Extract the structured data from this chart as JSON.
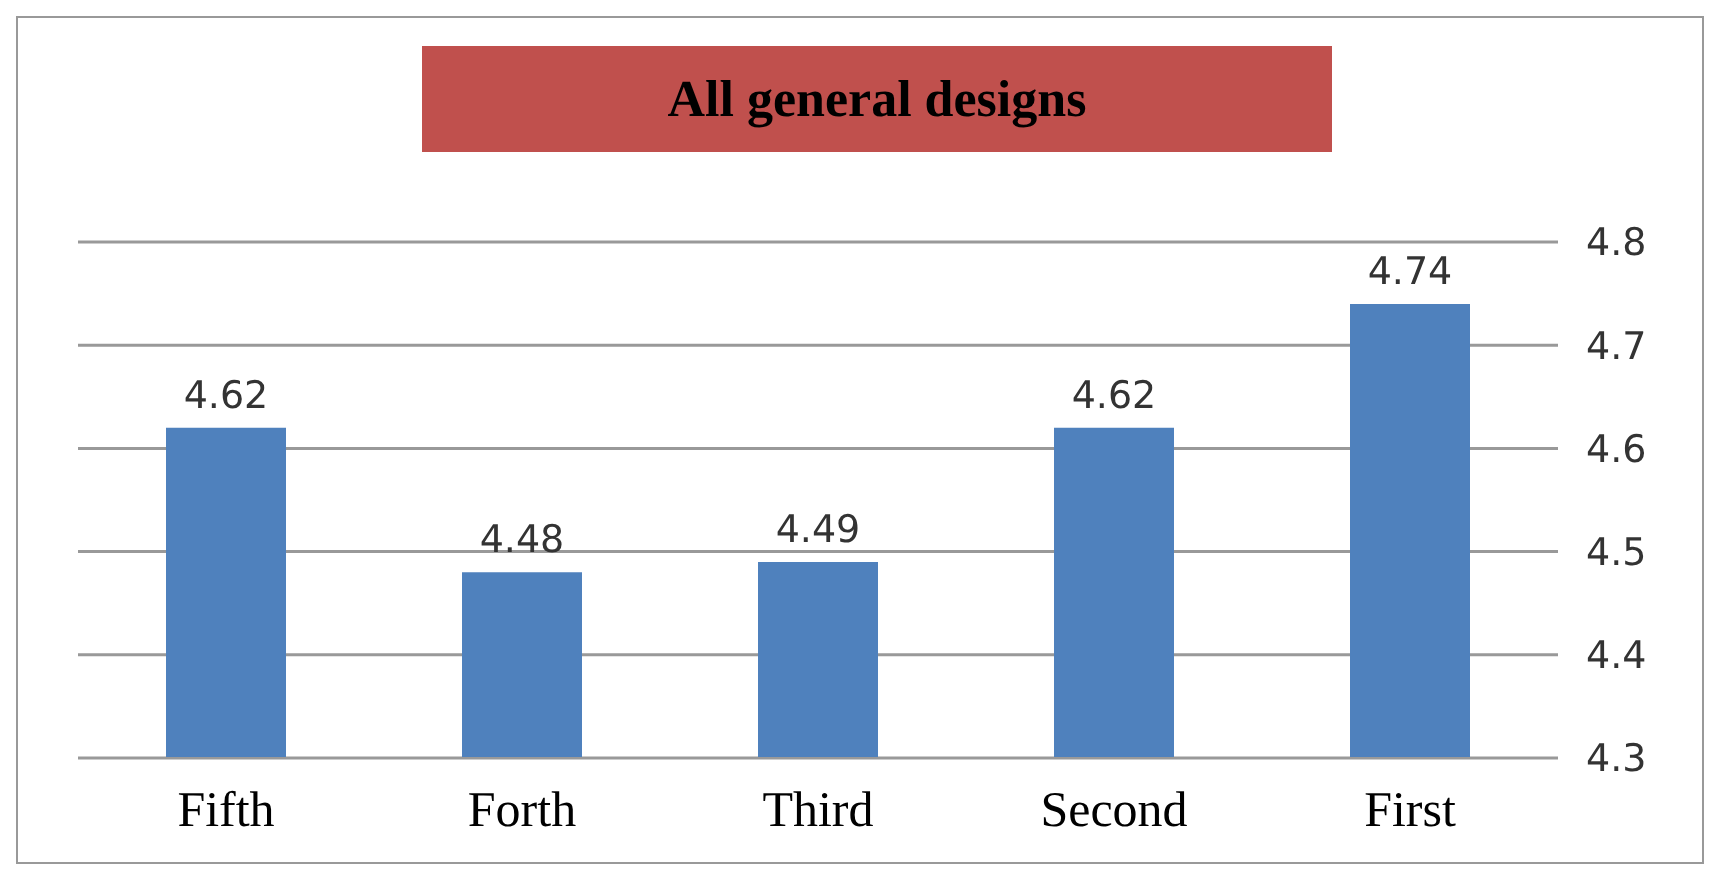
{
  "chart_data": {
    "type": "bar",
    "title": "All general designs",
    "categories": [
      "Fifth",
      "Forth",
      "Third",
      "Second",
      "First"
    ],
    "values": [
      4.62,
      4.48,
      4.49,
      4.62,
      4.74
    ],
    "color": "#4f81bd",
    "ylim": [
      4.3,
      4.8
    ],
    "yticks": [
      4.3,
      4.4,
      4.5,
      4.6,
      4.7,
      4.8
    ],
    "grid": "y",
    "data_labels": true,
    "legend": false
  }
}
